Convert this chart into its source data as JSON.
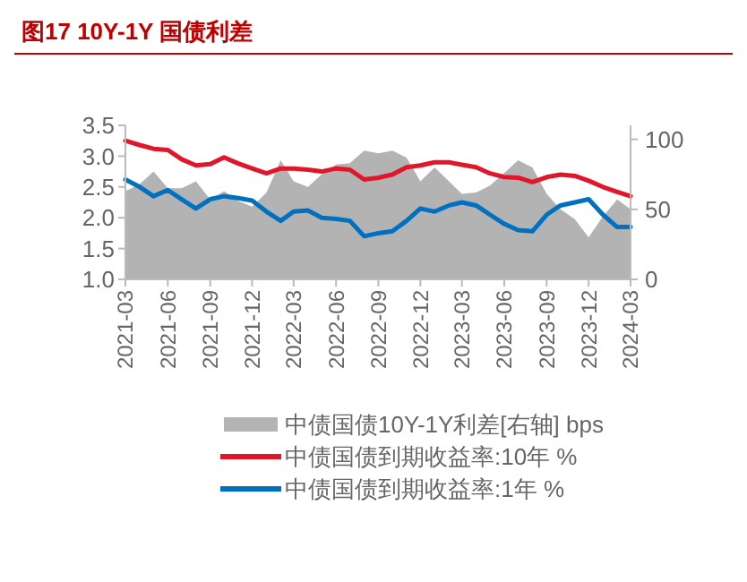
{
  "chart_data": {
    "type": "line",
    "title": "图17  10Y-1Y 国债利差",
    "x": [
      "2021-03",
      "2021-04",
      "2021-05",
      "2021-06",
      "2021-07",
      "2021-08",
      "2021-09",
      "2021-10",
      "2021-11",
      "2021-12",
      "2022-01",
      "2022-02",
      "2022-03",
      "2022-04",
      "2022-05",
      "2022-06",
      "2022-07",
      "2022-08",
      "2022-09",
      "2022-10",
      "2022-11",
      "2022-12",
      "2023-01",
      "2023-02",
      "2023-03",
      "2023-04",
      "2023-05",
      "2023-06",
      "2023-07",
      "2023-08",
      "2023-09",
      "2023-10",
      "2023-11",
      "2023-12",
      "2024-01",
      "2024-02",
      "2024-03"
    ],
    "series": [
      {
        "name": "中债国债10Y-1Y利差[右轴] bps",
        "type": "area",
        "axis": "y2",
        "color": "#b3b3b3",
        "values": [
          63,
          68,
          77,
          65,
          65,
          70,
          57,
          63,
          56,
          52,
          62,
          85,
          70,
          66,
          75,
          82,
          83,
          92,
          90,
          92,
          87,
          70,
          80,
          70,
          61,
          62,
          67,
          76,
          85,
          80,
          61,
          50,
          43,
          30,
          45,
          57,
          50
        ]
      },
      {
        "name": "中债国债到期收益率:10年 %",
        "color": "#e0162b",
        "values": [
          3.25,
          3.18,
          3.12,
          3.1,
          2.95,
          2.85,
          2.87,
          2.98,
          2.88,
          2.8,
          2.72,
          2.8,
          2.8,
          2.78,
          2.75,
          2.8,
          2.78,
          2.62,
          2.65,
          2.7,
          2.82,
          2.85,
          2.9,
          2.9,
          2.86,
          2.82,
          2.72,
          2.66,
          2.65,
          2.58,
          2.66,
          2.7,
          2.68,
          2.6,
          2.5,
          2.42,
          2.35
        ]
      },
      {
        "name": "中债国债到期收益率:1年 %",
        "color": "#0070c0",
        "values": [
          2.62,
          2.5,
          2.35,
          2.45,
          2.3,
          2.15,
          2.3,
          2.35,
          2.32,
          2.28,
          2.1,
          1.95,
          2.1,
          2.12,
          2.0,
          1.98,
          1.95,
          1.7,
          1.75,
          1.78,
          1.95,
          2.15,
          2.1,
          2.2,
          2.25,
          2.2,
          2.05,
          1.9,
          1.8,
          1.78,
          2.05,
          2.2,
          2.25,
          2.3,
          2.05,
          1.85,
          1.85
        ]
      }
    ],
    "xlim": [
      "2021-03",
      "2024-03"
    ],
    "xticks": [
      "2021-03",
      "2021-06",
      "2021-09",
      "2021-12",
      "2022-03",
      "2022-06",
      "2022-09",
      "2022-12",
      "2023-03",
      "2023-06",
      "2023-09",
      "2023-12",
      "2024-03"
    ],
    "ylim": [
      1.0,
      3.5
    ],
    "yticks": [
      {
        "value": 1,
        "label": "1.0"
      },
      {
        "value": 1.5,
        "label": "1.5"
      },
      {
        "value": 2,
        "label": "2.0"
      },
      {
        "value": 2.5,
        "label": "2.5"
      },
      {
        "value": 3,
        "label": "3.0"
      },
      {
        "value": 3.5,
        "label": "3.5"
      }
    ],
    "y2lim": [
      0,
      110
    ],
    "y2ticks": [
      0,
      50,
      100
    ],
    "legend": "bottom",
    "grid": false
  }
}
